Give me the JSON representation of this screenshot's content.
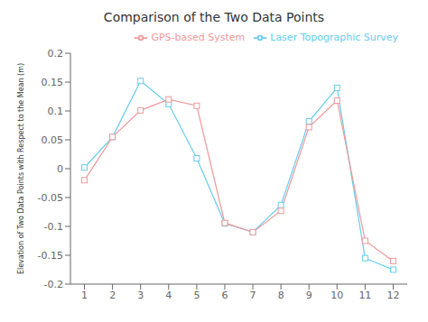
{
  "chart_data": {
    "type": "line",
    "title": "Comparison of the Two Data Points",
    "ylabel": "Elevation of Two Data Points with Respect to the Mean (m)",
    "x": [
      1,
      2,
      3,
      4,
      5,
      6,
      7,
      8,
      9,
      10,
      11,
      12
    ],
    "series": [
      {
        "name": "Laser Topographic Survey",
        "color": "#66ccee",
        "marker": "square",
        "values": [
          0.002,
          0.055,
          0.152,
          0.112,
          0.018,
          -0.095,
          -0.11,
          -0.063,
          0.082,
          0.14,
          -0.155,
          -0.175
        ]
      },
      {
        "name": "GPS-based System",
        "color": "#ee9999",
        "marker": "square",
        "values": [
          -0.02,
          0.055,
          0.101,
          0.12,
          0.109,
          -0.094,
          -0.11,
          -0.073,
          0.072,
          0.118,
          -0.125,
          -0.16
        ]
      }
    ],
    "xlim": [
      0.5,
      12.5
    ],
    "xticks": [
      1,
      2,
      3,
      4,
      5,
      6,
      7,
      8,
      9,
      10,
      11,
      12
    ],
    "ylim": [
      -0.2,
      0.2
    ],
    "yticks": [
      -0.2,
      -0.15,
      -0.1,
      -0.05,
      0,
      0.05,
      0.1,
      0.15,
      0.2
    ],
    "grid": false,
    "legend": "upper right"
  }
}
